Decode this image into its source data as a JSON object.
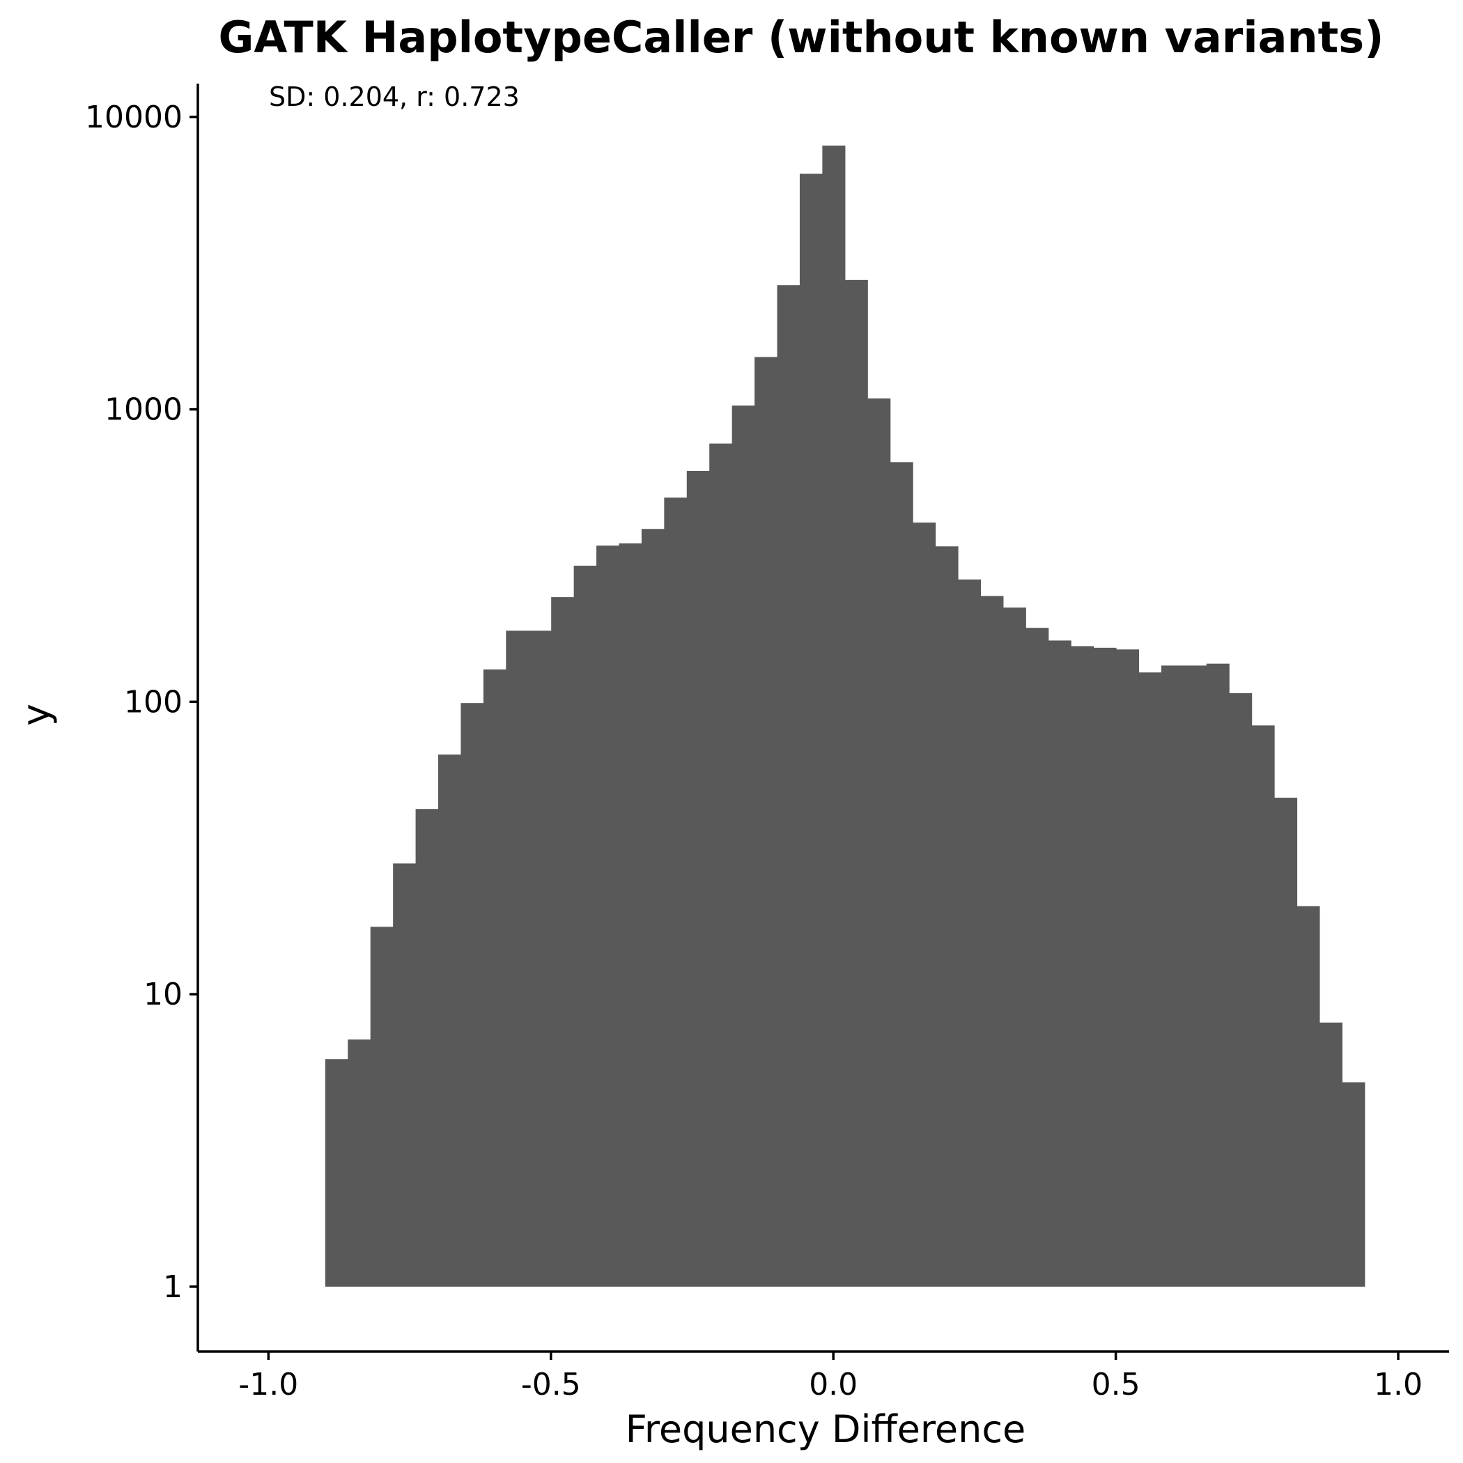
{
  "chart_data": {
    "type": "bar",
    "title": "GATK HaplotypeCaller (without known variants)",
    "annotation": "SD: 0.204, r: 0.723",
    "xlabel": "Frequency Difference",
    "ylabel": "y",
    "xlim": [
      -1.125,
      1.09
    ],
    "ylim": [
      0.6,
      13000
    ],
    "yscale": "log",
    "baseline": 1,
    "x_ticks": [
      {
        "value": -1.0,
        "label": "-1.0"
      },
      {
        "value": -0.5,
        "label": "-0.5"
      },
      {
        "value": 0.0,
        "label": "0.0"
      },
      {
        "value": 0.5,
        "label": "0.5"
      },
      {
        "value": 1.0,
        "label": "1.0"
      }
    ],
    "y_ticks": [
      {
        "value": 1,
        "label": "1"
      },
      {
        "value": 10,
        "label": "10"
      },
      {
        "value": 100,
        "label": "100"
      },
      {
        "value": 1000,
        "label": "1000"
      },
      {
        "value": 10000,
        "label": "10000"
      }
    ],
    "bin_start": -0.8995,
    "bin_width": 0.04,
    "values": [
      6,
      7,
      17,
      28,
      43,
      66,
      99,
      129,
      175,
      175,
      228,
      292,
      342,
      348,
      390,
      499,
      616,
      764,
      1030,
      1510,
      2660,
      6390,
      7980,
      2770,
      1090,
      660,
      410,
      340,
      262,
      230,
      210,
      179,
      162,
      155,
      153,
      151,
      126,
      133,
      133,
      135,
      107,
      83,
      47,
      20,
      8,
      5
    ],
    "grid": false,
    "legend": "none",
    "bar_color": "#595959"
  }
}
